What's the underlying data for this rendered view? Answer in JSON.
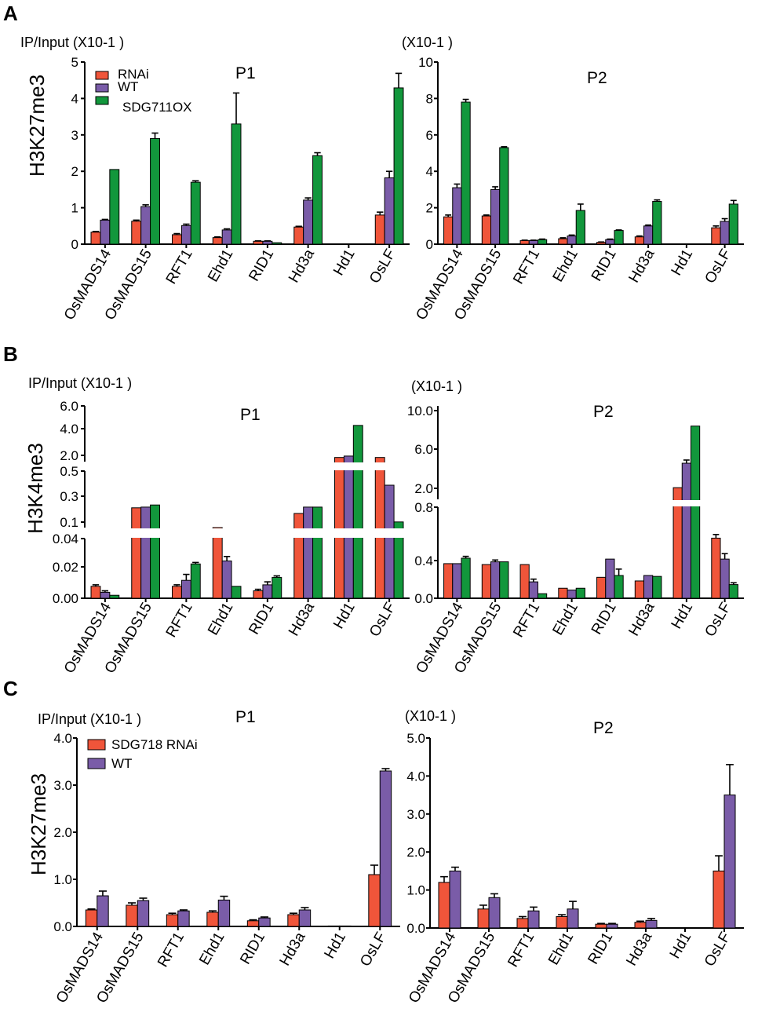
{
  "colors": {
    "rnai": "#f0553a",
    "wt": "#7a5ca8",
    "ox": "#12973c"
  },
  "categories": [
    "OsMADS14",
    "OsMADS15",
    "RFT1",
    "Ehd1",
    "RID1",
    "Hd3a",
    "Hd1",
    "OsLF"
  ],
  "unit_p1": "IP/Input (X10-1 )",
  "unit_p2": "(X10-1 )",
  "panels": [
    {
      "letter": "A",
      "ylabel": "H3K27me3",
      "legend": [
        "RNAi",
        "WT",
        "SDG711OX"
      ],
      "charts": [
        {
          "title": "P1",
          "type": "bar",
          "ylim": [
            0,
            5
          ],
          "ticks": [
            "0",
            "1",
            "2",
            "3",
            "4",
            "5"
          ],
          "tick_values": [
            0,
            1,
            2,
            3,
            4,
            5
          ],
          "series": [
            {
              "name": "RNAi",
              "values": [
                0.33,
                0.63,
                0.26,
                0.18,
                0.08,
                0.47,
                0.01,
                0.8
              ],
              "errors": [
                0.02,
                0.03,
                0.03,
                0.02,
                0.01,
                0.02,
                0.0,
                0.08
              ]
            },
            {
              "name": "WT",
              "values": [
                0.66,
                1.03,
                0.51,
                0.39,
                0.08,
                1.21,
                0.01,
                1.82
              ],
              "errors": [
                0.02,
                0.05,
                0.04,
                0.03,
                0.01,
                0.06,
                0.0,
                0.18
              ]
            },
            {
              "name": "SDG711OX",
              "values": [
                2.05,
                2.9,
                1.7,
                3.3,
                0.04,
                2.43,
                0.01,
                4.29
              ],
              "errors": [
                0.0,
                0.15,
                0.04,
                0.85,
                0.0,
                0.08,
                0.0,
                0.4
              ]
            }
          ]
        },
        {
          "title": "P2",
          "type": "bar",
          "ylim": [
            0,
            10
          ],
          "ticks": [
            "0",
            "2",
            "4",
            "6",
            "8",
            "10"
          ],
          "tick_values": [
            0,
            2,
            4,
            6,
            8,
            10
          ],
          "series": [
            {
              "name": "RNAi",
              "values": [
                1.5,
                1.55,
                0.2,
                0.3,
                0.1,
                0.4,
                0.02,
                0.9
              ],
              "errors": [
                0.1,
                0.05,
                0.02,
                0.05,
                0.02,
                0.05,
                0.0,
                0.1
              ]
            },
            {
              "name": "WT",
              "values": [
                3.1,
                3.0,
                0.2,
                0.45,
                0.25,
                1.0,
                0.02,
                1.25
              ],
              "errors": [
                0.2,
                0.15,
                0.02,
                0.05,
                0.03,
                0.05,
                0.0,
                0.15
              ]
            },
            {
              "name": "SDG711OX",
              "values": [
                7.8,
                5.3,
                0.25,
                1.85,
                0.75,
                2.35,
                0.02,
                2.2
              ],
              "errors": [
                0.15,
                0.05,
                0.03,
                0.35,
                0.03,
                0.08,
                0.0,
                0.2
              ]
            }
          ]
        }
      ]
    },
    {
      "letter": "B",
      "ylabel": "H3K4me3",
      "legend": [],
      "charts": [
        {
          "title": "P1",
          "type": "bar",
          "scale": "broken",
          "segments": [
            {
              "range": [
                0,
                0.04
              ]
            },
            {
              "range": [
                0.1,
                0.5
              ]
            },
            {
              "range": [
                2,
                6
              ]
            }
          ],
          "ticks": [
            "0.00",
            "0.02",
            "0.04",
            "0.1",
            "0.3",
            "0.5",
            "2.0",
            "4.0",
            "6.0"
          ],
          "tick_values": [
            0,
            0.02,
            0.04,
            0.1,
            0.3,
            0.5,
            2,
            4,
            6
          ],
          "series": [
            {
              "name": "RNAi",
              "values": [
                0.008,
                0.24,
                0.008,
                0.1,
                0.005,
                0.2,
                2.3,
                2.3
              ],
              "errors": [
                0.001,
                0.0,
                0.001,
                0.0,
                0.001,
                0.0,
                0.0,
                0.0
              ]
            },
            {
              "name": "WT",
              "values": [
                0.004,
                0.245,
                0.012,
                0.025,
                0.009,
                0.245,
                2.4,
                0.4
              ],
              "errors": [
                0.001,
                0.0,
                0.004,
                0.003,
                0.002,
                0.0,
                0.0,
                0.0
              ]
            },
            {
              "name": "SDG711OX",
              "values": [
                0.002,
                0.26,
                0.023,
                0.008,
                0.014,
                0.245,
                4.6,
                0.14
              ],
              "errors": [
                0.0,
                0.0,
                0.001,
                0.0,
                0.001,
                0.0,
                0.0,
                0.0
              ]
            }
          ]
        },
        {
          "title": "P2",
          "type": "bar",
          "scale": "broken",
          "segments": [
            {
              "range": [
                0,
                1.0
              ]
            },
            {
              "range": [
                1.2,
                10
              ]
            }
          ],
          "ticks": [
            "0.0",
            "0.4",
            "0.8",
            "2.0",
            "6.0",
            "10.0"
          ],
          "tick_values": [
            0,
            0.4,
            0.8,
            2,
            6,
            10
          ],
          "series": [
            {
              "name": "RNAi",
              "values": [
                0.38,
                0.37,
                0.37,
                0.11,
                0.23,
                0.19,
                2.3,
                0.66
              ],
              "errors": [
                0.0,
                0.0,
                0.0,
                0.0,
                0.0,
                0.0,
                0.0,
                0.04
              ]
            },
            {
              "name": "WT",
              "values": [
                0.38,
                0.4,
                0.18,
                0.09,
                0.43,
                0.25,
                4.6,
                0.43
              ],
              "errors": [
                0.0,
                0.02,
                0.03,
                0.0,
                0.0,
                0.0,
                0.3,
                0.06
              ]
            },
            {
              "name": "SDG711OX",
              "values": [
                0.44,
                0.4,
                0.05,
                0.11,
                0.25,
                0.24,
                8.1,
                0.15
              ],
              "errors": [
                0.02,
                0.0,
                0.0,
                0.0,
                0.07,
                0.0,
                0.0,
                0.02
              ]
            }
          ]
        }
      ]
    },
    {
      "letter": "C",
      "ylabel": "H3K27me3",
      "legend": [
        "SDG718 RNAi",
        "WT"
      ],
      "charts": [
        {
          "title": "P1",
          "type": "bar",
          "ylim": [
            0,
            4.0
          ],
          "ticks": [
            "0.0",
            "1.0",
            "2.0",
            "3.0",
            "4.0"
          ],
          "tick_values": [
            0,
            1,
            2,
            3,
            4
          ],
          "series": [
            {
              "name": "SDG718 RNAi",
              "values": [
                0.35,
                0.45,
                0.25,
                0.3,
                0.12,
                0.25,
                0.01,
                1.1
              ],
              "errors": [
                0.02,
                0.05,
                0.03,
                0.03,
                0.02,
                0.03,
                0.0,
                0.2
              ]
            },
            {
              "name": "WT",
              "values": [
                0.65,
                0.55,
                0.33,
                0.56,
                0.18,
                0.35,
                0.01,
                3.3
              ],
              "errors": [
                0.1,
                0.05,
                0.02,
                0.08,
                0.02,
                0.05,
                0.0,
                0.05
              ]
            }
          ]
        },
        {
          "title": "P2",
          "type": "bar",
          "ylim": [
            0,
            5.0
          ],
          "ticks": [
            "0.0",
            "1.0",
            "2.0",
            "3.0",
            "4.0",
            "5.0"
          ],
          "tick_values": [
            0,
            1,
            2,
            3,
            4,
            5
          ],
          "series": [
            {
              "name": "SDG718 RNAi",
              "values": [
                1.2,
                0.5,
                0.25,
                0.3,
                0.1,
                0.15,
                0.01,
                1.5
              ],
              "errors": [
                0.15,
                0.1,
                0.05,
                0.05,
                0.02,
                0.03,
                0.0,
                0.4
              ]
            },
            {
              "name": "WT",
              "values": [
                1.5,
                0.8,
                0.45,
                0.5,
                0.1,
                0.2,
                0.01,
                3.5
              ],
              "errors": [
                0.1,
                0.1,
                0.1,
                0.2,
                0.02,
                0.05,
                0.0,
                0.8
              ]
            }
          ]
        }
      ]
    }
  ]
}
